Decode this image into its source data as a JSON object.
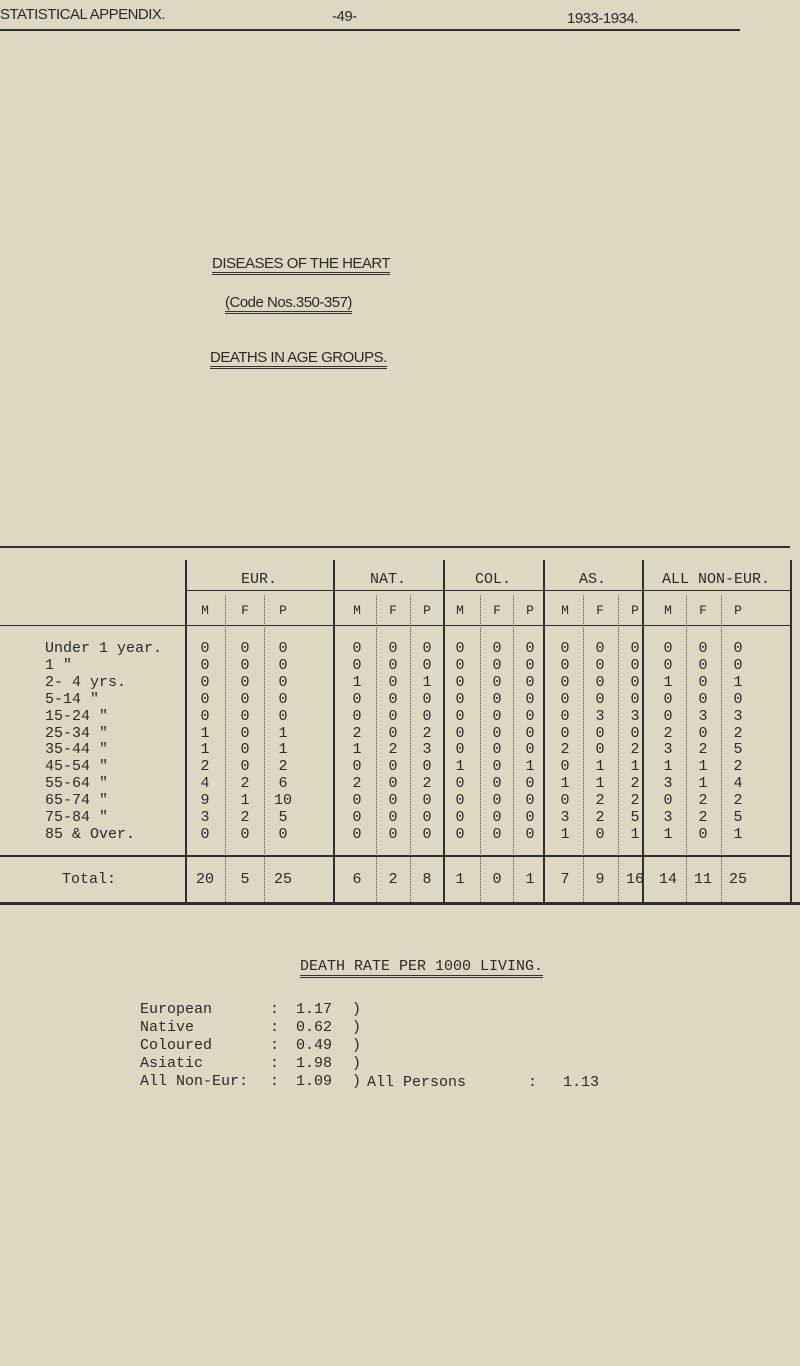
{
  "page_header": {
    "left": "STATISTICAL APPENDIX.",
    "page_number": "-49-",
    "right": "1933-1934."
  },
  "title": "DISEASES OF THE HEART",
  "code": "(Code Nos.350-357)",
  "subtitle": "DEATHS IN AGE GROUPS.",
  "table": {
    "groups": [
      "EUR.",
      "NAT.",
      "COL.",
      "AS.",
      "ALL NON-EUR."
    ],
    "subheaders": [
      "M",
      "F",
      "P"
    ],
    "rows": [
      {
        "label": "Under 1 year.",
        "values": [
          0,
          0,
          0,
          0,
          0,
          0,
          0,
          0,
          0,
          0,
          0,
          0,
          0,
          0,
          0
        ]
      },
      {
        "label": "1 \"",
        "values": [
          0,
          0,
          0,
          0,
          0,
          0,
          0,
          0,
          0,
          0,
          0,
          0,
          0,
          0,
          0
        ]
      },
      {
        "label": "2- 4 yrs.",
        "values": [
          0,
          0,
          0,
          1,
          0,
          1,
          0,
          0,
          0,
          0,
          0,
          0,
          1,
          0,
          1
        ]
      },
      {
        "label": "5-14 \"",
        "values": [
          0,
          0,
          0,
          0,
          0,
          0,
          0,
          0,
          0,
          0,
          0,
          0,
          0,
          0,
          0
        ]
      },
      {
        "label": "15-24 \"",
        "values": [
          0,
          0,
          0,
          0,
          0,
          0,
          0,
          0,
          0,
          0,
          3,
          3,
          0,
          3,
          3
        ]
      },
      {
        "label": "25-34 \"",
        "values": [
          1,
          0,
          1,
          2,
          0,
          2,
          0,
          0,
          0,
          0,
          0,
          0,
          2,
          0,
          2
        ]
      },
      {
        "label": "35-44 \"",
        "values": [
          1,
          0,
          1,
          1,
          2,
          3,
          0,
          0,
          0,
          2,
          0,
          2,
          3,
          2,
          5
        ]
      },
      {
        "label": "45-54 \"",
        "values": [
          2,
          0,
          2,
          0,
          0,
          0,
          1,
          0,
          1,
          0,
          1,
          1,
          1,
          1,
          2
        ]
      },
      {
        "label": "55-64 \"",
        "values": [
          4,
          2,
          6,
          2,
          0,
          2,
          0,
          0,
          0,
          1,
          1,
          2,
          3,
          1,
          4
        ]
      },
      {
        "label": "65-74 \"",
        "values": [
          9,
          1,
          10,
          0,
          0,
          0,
          0,
          0,
          0,
          0,
          2,
          2,
          0,
          2,
          2
        ]
      },
      {
        "label": "75-84 \"",
        "values": [
          3,
          2,
          5,
          0,
          0,
          0,
          0,
          0,
          0,
          3,
          2,
          5,
          3,
          2,
          5
        ]
      },
      {
        "label": "85 & Over.",
        "values": [
          0,
          0,
          0,
          0,
          0,
          0,
          0,
          0,
          0,
          1,
          0,
          1,
          1,
          0,
          1
        ]
      }
    ],
    "total": {
      "label": "Total:",
      "values": [
        20,
        5,
        25,
        6,
        2,
        8,
        1,
        0,
        1,
        7,
        9,
        16,
        14,
        11,
        25
      ]
    }
  },
  "death_rate": {
    "title": "DEATH RATE PER 1000 LIVING.",
    "items": [
      {
        "label": "European",
        "sep": ":",
        "value": "1.17",
        "brace": ")"
      },
      {
        "label": "Native",
        "sep": ":",
        "value": "0.62",
        "brace": ")"
      },
      {
        "label": "Coloured",
        "sep": ":",
        "value": "0.49",
        "brace": ")"
      },
      {
        "label": "Asiatic",
        "sep": ":",
        "value": "1.98",
        "brace": ")"
      },
      {
        "label": "All Non-Eur:",
        "sep": ":",
        "value": "1.09",
        "brace": ")"
      }
    ],
    "all_persons_label": "All Persons",
    "all_persons_sep": ":",
    "all_persons_value": "1.13"
  }
}
